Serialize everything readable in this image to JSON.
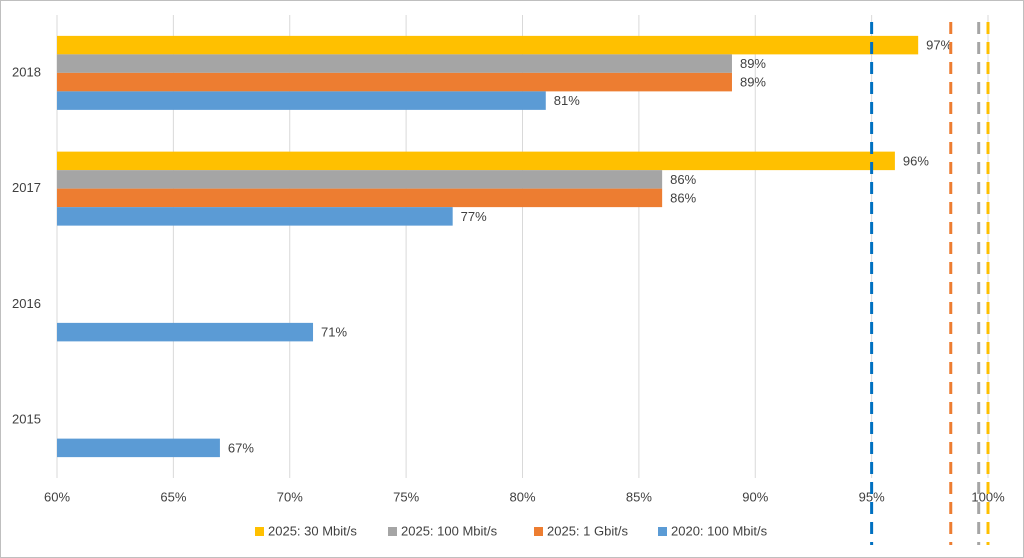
{
  "chart_data": {
    "type": "bar",
    "orientation": "horizontal",
    "categories": [
      "2018",
      "2017",
      "2016",
      "2015"
    ],
    "series": [
      {
        "name": "2025: 30 Mbit/s",
        "color": "#ffc000",
        "values": [
          97,
          96,
          null,
          null
        ],
        "value_labels": [
          "97%",
          "96%",
          null,
          null
        ]
      },
      {
        "name": "2025: 100 Mbit/s",
        "color": "#a5a5a5",
        "values": [
          89,
          86,
          null,
          null
        ],
        "value_labels": [
          "89%",
          "86%",
          null,
          null
        ]
      },
      {
        "name": "2025: 1 Gbit/s",
        "color": "#ed7d31",
        "values": [
          89,
          86,
          null,
          null
        ],
        "value_labels": [
          "89%",
          "86%",
          null,
          null
        ]
      },
      {
        "name": "2020: 100 Mbit/s",
        "color": "#5b9bd5",
        "values": [
          81,
          77,
          71,
          67
        ],
        "value_labels": [
          "81%",
          "77%",
          "71%",
          "67%"
        ]
      }
    ],
    "xlim": [
      60,
      100
    ],
    "xticks": [
      {
        "value": 60,
        "label": "60%"
      },
      {
        "value": 65,
        "label": "65%"
      },
      {
        "value": 70,
        "label": "70%"
      },
      {
        "value": 75,
        "label": "75%"
      },
      {
        "value": 80,
        "label": "80%"
      },
      {
        "value": 85,
        "label": "85%"
      },
      {
        "value": 90,
        "label": "90%"
      },
      {
        "value": 95,
        "label": "95%"
      },
      {
        "value": 100,
        "label": "100%"
      }
    ],
    "grid": true,
    "legend": "bottom",
    "reference_lines": [
      {
        "value": 95,
        "color": "#0070c0"
      },
      {
        "value": 98.4,
        "color": "#ed7d31"
      },
      {
        "value": 99.6,
        "color": "#a5a5a5"
      },
      {
        "value": 100,
        "color": "#ffc000"
      }
    ]
  }
}
